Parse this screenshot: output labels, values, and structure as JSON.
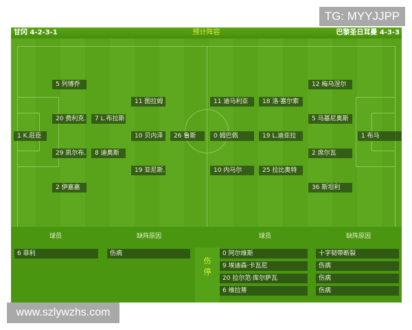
{
  "watermarks": {
    "top": "TG: MYYJJPP",
    "bottom": "www.szlywzhs.com"
  },
  "header": {
    "home": "甘冈 4-2-3-1",
    "title": "预计阵容",
    "away": "巴黎圣日耳曼 4-3-3"
  },
  "home_players": [
    "1 K.莊臣",
    "5 列博乔",
    "20 费利克..",
    "29 凯尔布..",
    "2 伊嘉嘉",
    "7 L.布拉斯",
    "8 迪奥斯",
    "11 图拉姆",
    "10 贝内泽",
    "19 亚尼斯..",
    "26 鲁斯"
  ],
  "away_players": [
    "11 迪马利亚",
    "0 姆巴佩",
    "10 内马尔",
    "18 洛·塞尔索",
    "19 L.迪亚拉",
    "25 拉比奥特",
    "12 梅乌涅尔",
    "5 马基尼奥斯",
    "2 席尔瓦",
    "36 斯坦利",
    "1 布马"
  ],
  "absent": {
    "col_player": "球员",
    "col_reason": "缺阵原因",
    "label": "伤停",
    "home": [
      {
        "player": "6 菲利",
        "reason": "伤病"
      }
    ],
    "away": [
      {
        "player": "0 阿尔维斯",
        "reason": "十字韧带断裂"
      },
      {
        "player": "9 埃迪森·卡瓦尼",
        "reason": "伤病"
      },
      {
        "player": "20 拉尔范·库尔萨瓦",
        "reason": "伤病"
      },
      {
        "player": "6 维拉蒂",
        "reason": "伤病"
      }
    ]
  }
}
